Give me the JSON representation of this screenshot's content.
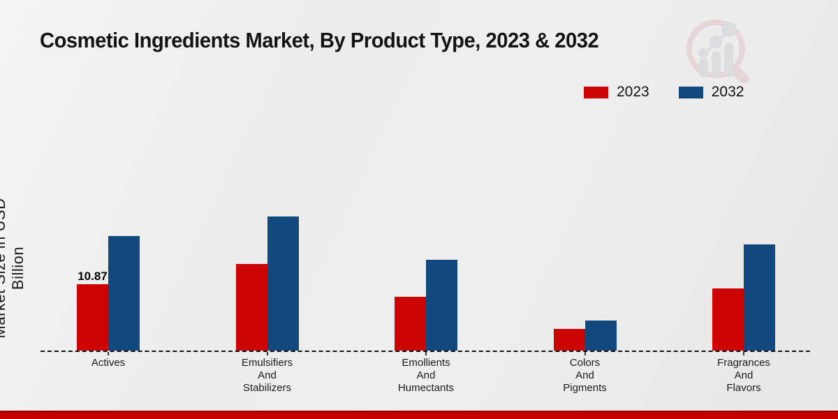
{
  "page": {
    "title": "Cosmetic Ingredients Market, By Product Type, 2023 & 2032"
  },
  "chart_data": {
    "type": "bar",
    "title": "Cosmetic Ingredients Market, By Product Type, 2023 & 2032",
    "ylabel": "Market Size in USD Billion",
    "xlabel": "",
    "categories": [
      "Actives",
      "Emulsifiers\nAnd\nStabilizers",
      "Emollients\nAnd\nHumectants",
      "Colors\nAnd\nPigments",
      "Fragrances\nAnd\nFlavors"
    ],
    "series": [
      {
        "name": "2023",
        "color": "#cc0404",
        "values": [
          10.87,
          14.2,
          8.8,
          3.5,
          10.2
        ]
      },
      {
        "name": "2032",
        "color": "#11497e",
        "values": [
          18.8,
          22.0,
          14.9,
          4.9,
          17.4
        ]
      }
    ],
    "bar_labels": [
      {
        "series_index": 0,
        "category_index": 0,
        "text": "10.87"
      }
    ],
    "ylim": [
      0,
      25
    ],
    "grid": false,
    "legend_position": "top-right",
    "baseline_style": "dashed"
  },
  "footer": {
    "accent_color": "#c40000",
    "accent_dark": "#9a0000"
  },
  "icons": {
    "watermark": "magnifier-bar-chart-logo"
  }
}
